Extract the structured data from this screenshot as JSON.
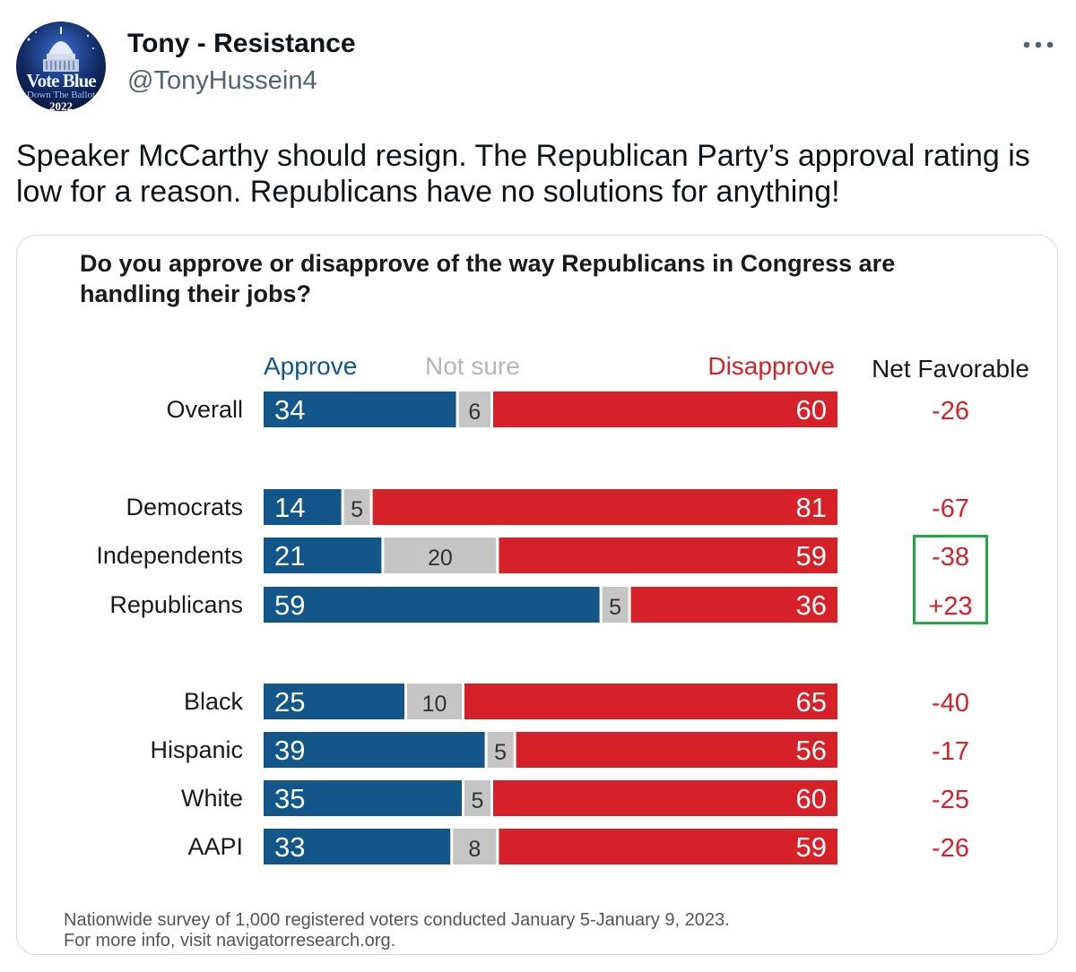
{
  "tweet": {
    "avatar": {
      "icon": "capitol-dome-icon",
      "line1": "Vote Blue",
      "line2": "Down The Ballot",
      "line3": "2022"
    },
    "display_name": "Tony - Resistance",
    "handle": "@TonyHussein4",
    "more_icon": "more-dots-icon",
    "text": "Speaker McCarthy should resign. The Republican Party’s approval rating is low for a reason. Republicans have no solutions for anything!"
  },
  "colors": {
    "approve": "#13568a",
    "not_sure": "#c5c5c5",
    "disapprove": "#d62128",
    "net_favorable": "#d62128",
    "highlight_box": "#22a845"
  },
  "chart_data": {
    "type": "bar",
    "stacked": true,
    "orientation": "horizontal",
    "title": "Do you approve or disapprove of the way Republicans in Congress are handling their jobs?",
    "categories": [
      "Overall",
      "Democrats",
      "Independents",
      "Republicans",
      "Black",
      "Hispanic",
      "White",
      "AAPI"
    ],
    "groups": [
      [
        "Overall"
      ],
      [
        "Democrats",
        "Independents",
        "Republicans"
      ],
      [
        "Black",
        "Hispanic",
        "White",
        "AAPI"
      ]
    ],
    "series": [
      {
        "name": "Approve",
        "values": [
          34,
          14,
          21,
          59,
          25,
          39,
          35,
          33
        ]
      },
      {
        "name": "Not sure",
        "values": [
          6,
          5,
          20,
          5,
          10,
          5,
          5,
          8
        ]
      },
      {
        "name": "Disapprove",
        "values": [
          60,
          81,
          59,
          36,
          65,
          56,
          60,
          59
        ]
      }
    ],
    "net_favorable_header": "Net Favorable",
    "net_favorable": [
      "-26",
      "-67",
      "-38",
      "+23",
      "-40",
      "-17",
      "-25",
      "-26"
    ],
    "highlighted_rows": [
      "Independents",
      "Republicans"
    ],
    "footnote": [
      "Nationwide survey of 1,000 registered voters conducted January 5-January 9, 2023.",
      "For more info, visit navigatorresearch.org."
    ],
    "xlim": [
      0,
      100
    ],
    "legend": "top",
    "grid": false
  }
}
